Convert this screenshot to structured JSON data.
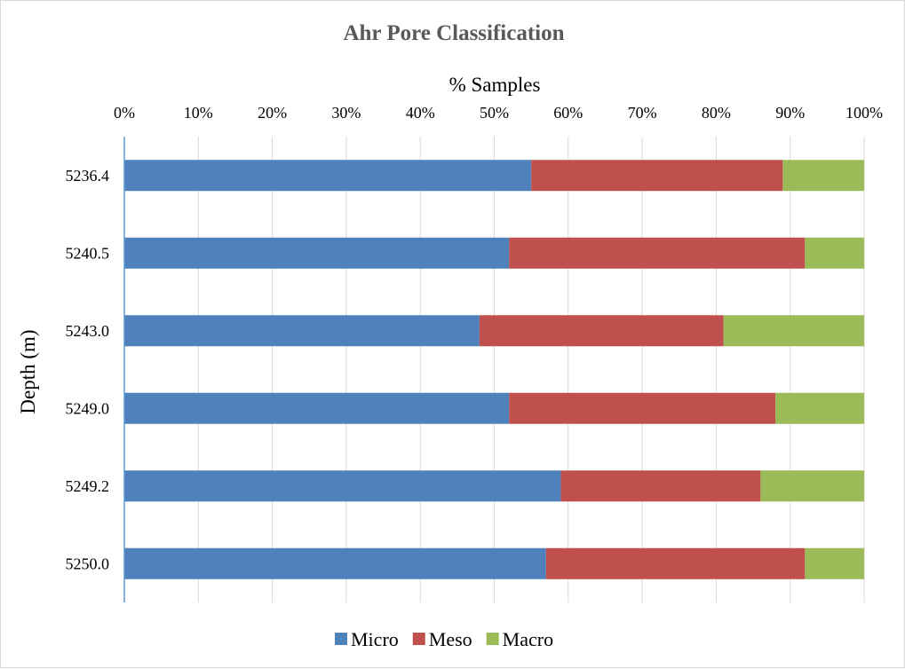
{
  "chart_data": {
    "type": "bar",
    "orientation": "horizontal",
    "stacked": "percent",
    "title": "Ahr Pore Classification",
    "xlabel": "% Samples",
    "ylabel": "Depth (m)",
    "xlim": [
      0,
      100
    ],
    "x_ticks": [
      "0%",
      "10%",
      "20%",
      "30%",
      "40%",
      "50%",
      "60%",
      "70%",
      "80%",
      "90%",
      "100%"
    ],
    "x_axis_position": "top",
    "grid": true,
    "legend_position": "bottom",
    "categories": [
      "5236.4",
      "5240.5",
      "5243.0",
      "5249.0",
      "5249.2",
      "5250.0"
    ],
    "series": [
      {
        "name": "Micro",
        "color": "#4f81bd",
        "values": [
          55,
          52,
          48,
          52,
          59,
          57
        ]
      },
      {
        "name": "Meso",
        "color": "#c0504d",
        "values": [
          34,
          40,
          33,
          36,
          27,
          35
        ]
      },
      {
        "name": "Macro",
        "color": "#9bbb59",
        "values": [
          11,
          8,
          19,
          12,
          14,
          8
        ]
      }
    ]
  }
}
